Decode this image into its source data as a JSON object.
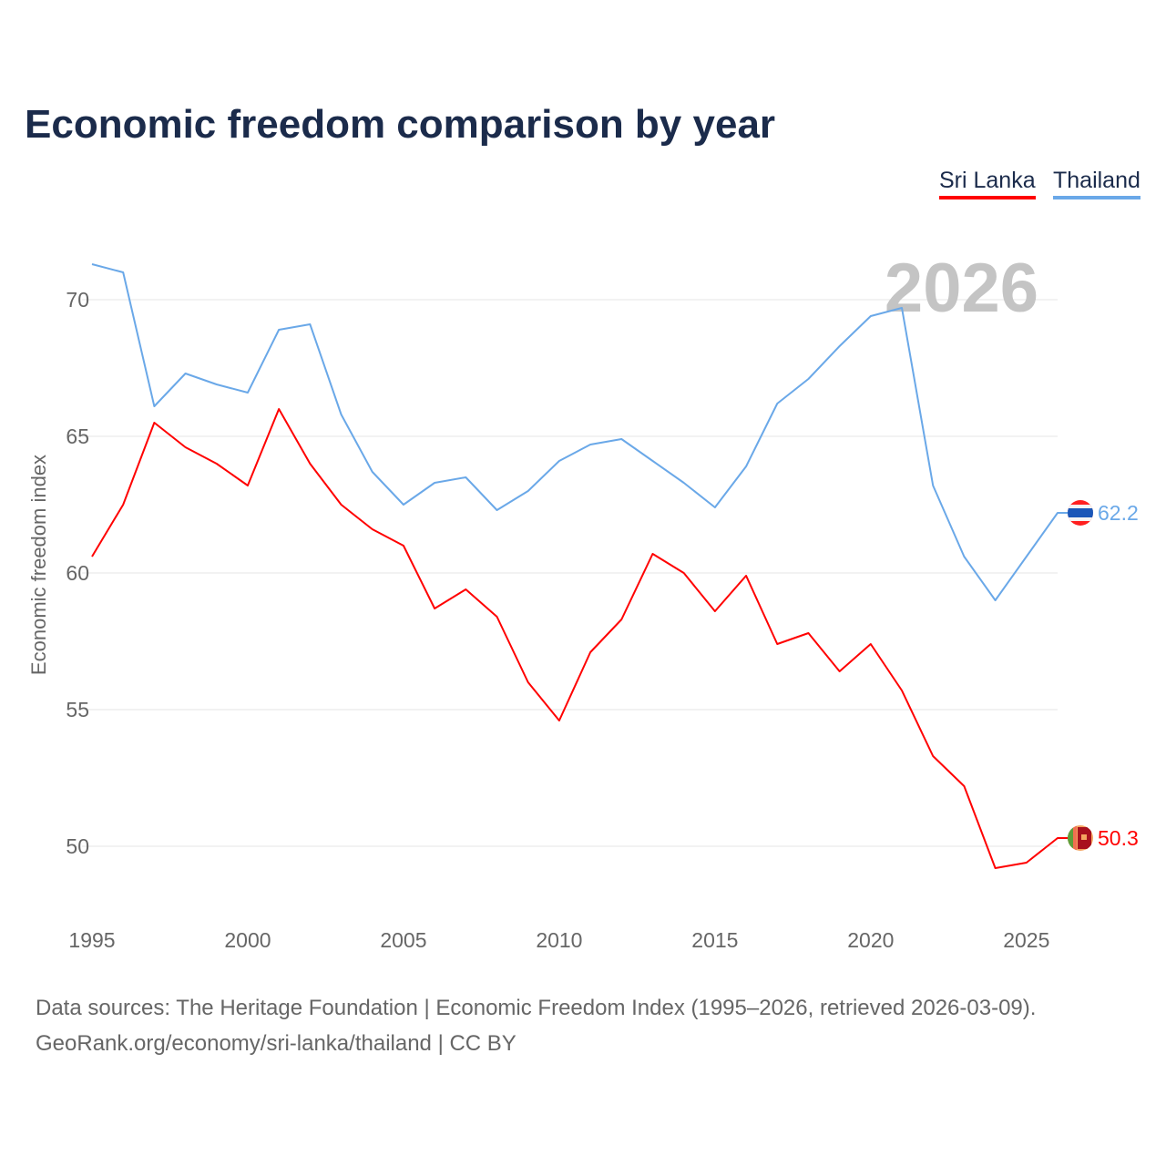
{
  "title": "Economic freedom comparison by year",
  "legend": [
    "Sri Lanka",
    "Thailand"
  ],
  "footer": {
    "line1": "Data sources: The Heritage Foundation | Economic Freedom Index (1995–2026, retrieved 2026-03-09).",
    "line2": "GeoRank.org/economy/sri-lanka/thailand | CC BY"
  },
  "chart_data": {
    "type": "line",
    "title": "Economic freedom comparison by year",
    "xlabel": "",
    "ylabel": "Economic freedom index",
    "highlight_year": "2026",
    "x": [
      1995,
      1996,
      1997,
      1998,
      1999,
      2000,
      2001,
      2002,
      2003,
      2004,
      2005,
      2006,
      2007,
      2008,
      2009,
      2010,
      2011,
      2012,
      2013,
      2014,
      2015,
      2016,
      2017,
      2018,
      2019,
      2020,
      2021,
      2022,
      2023,
      2024,
      2025,
      2026
    ],
    "xticks": [
      1995,
      2000,
      2005,
      2010,
      2015,
      2020,
      2025
    ],
    "yticks": [
      50,
      55,
      60,
      65,
      70
    ],
    "xlim": [
      1995,
      2026
    ],
    "ylim": [
      47,
      72
    ],
    "grid": true,
    "legend_position": "top-right",
    "series": [
      {
        "name": "Sri Lanka",
        "color": "#ff0000",
        "end_label": "50.3",
        "values": [
          60.6,
          62.5,
          65.5,
          64.6,
          64.0,
          63.2,
          66.0,
          64.0,
          62.5,
          61.6,
          61.0,
          58.7,
          59.4,
          58.4,
          56.0,
          54.6,
          57.1,
          58.3,
          60.7,
          60.0,
          58.6,
          59.9,
          57.4,
          57.8,
          56.4,
          57.4,
          55.7,
          53.3,
          52.2,
          49.2,
          49.4,
          50.3
        ]
      },
      {
        "name": "Thailand",
        "color": "#6aa8e8",
        "end_label": "62.2",
        "values": [
          71.3,
          71.0,
          66.1,
          67.3,
          66.9,
          66.6,
          68.9,
          69.1,
          65.8,
          63.7,
          62.5,
          63.3,
          63.5,
          62.3,
          63.0,
          64.1,
          64.7,
          64.9,
          64.1,
          63.3,
          62.4,
          63.9,
          66.2,
          67.1,
          68.3,
          69.4,
          69.7,
          63.2,
          60.6,
          59.0,
          60.6,
          62.2
        ]
      }
    ]
  }
}
